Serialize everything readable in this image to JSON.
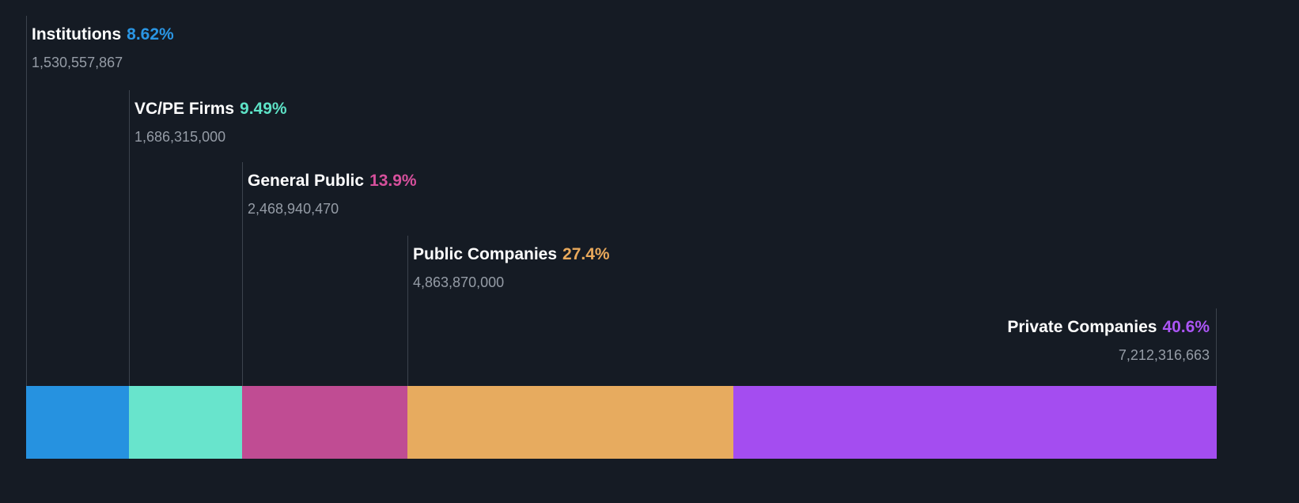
{
  "chart_data": {
    "type": "bar",
    "subtype": "horizontal-stacked-ownership-breakdown",
    "legend_position": "callouts-above-segments",
    "segments": [
      {
        "label": "Institutions",
        "percent": "8.62%",
        "percent_value": 8.62,
        "shares": "1,530,557,867",
        "color": "#2692e0",
        "percent_color": "#2a96e4"
      },
      {
        "label": "VC/PE Firms",
        "percent": "9.49%",
        "percent_value": 9.49,
        "shares": "1,686,315,000",
        "color": "#68e4cc",
        "percent_color": "#5de2c6"
      },
      {
        "label": "General Public",
        "percent": "13.9%",
        "percent_value": 13.9,
        "shares": "2,468,940,470",
        "color": "#c04c93",
        "percent_color": "#d6509c"
      },
      {
        "label": "Public Companies",
        "percent": "27.4%",
        "percent_value": 27.4,
        "shares": "4,863,870,000",
        "color": "#e7ab5f",
        "percent_color": "#e9a95b"
      },
      {
        "label": "Private Companies",
        "percent": "40.6%",
        "percent_value": 40.6,
        "shares": "7,212,316,663",
        "color": "#a44df0",
        "percent_color": "#ab55f5"
      }
    ]
  },
  "colors": {
    "background": "#151b24",
    "label_text": "#ffffff",
    "shares_text": "#959ca6",
    "leader_line": "#3c434d"
  }
}
